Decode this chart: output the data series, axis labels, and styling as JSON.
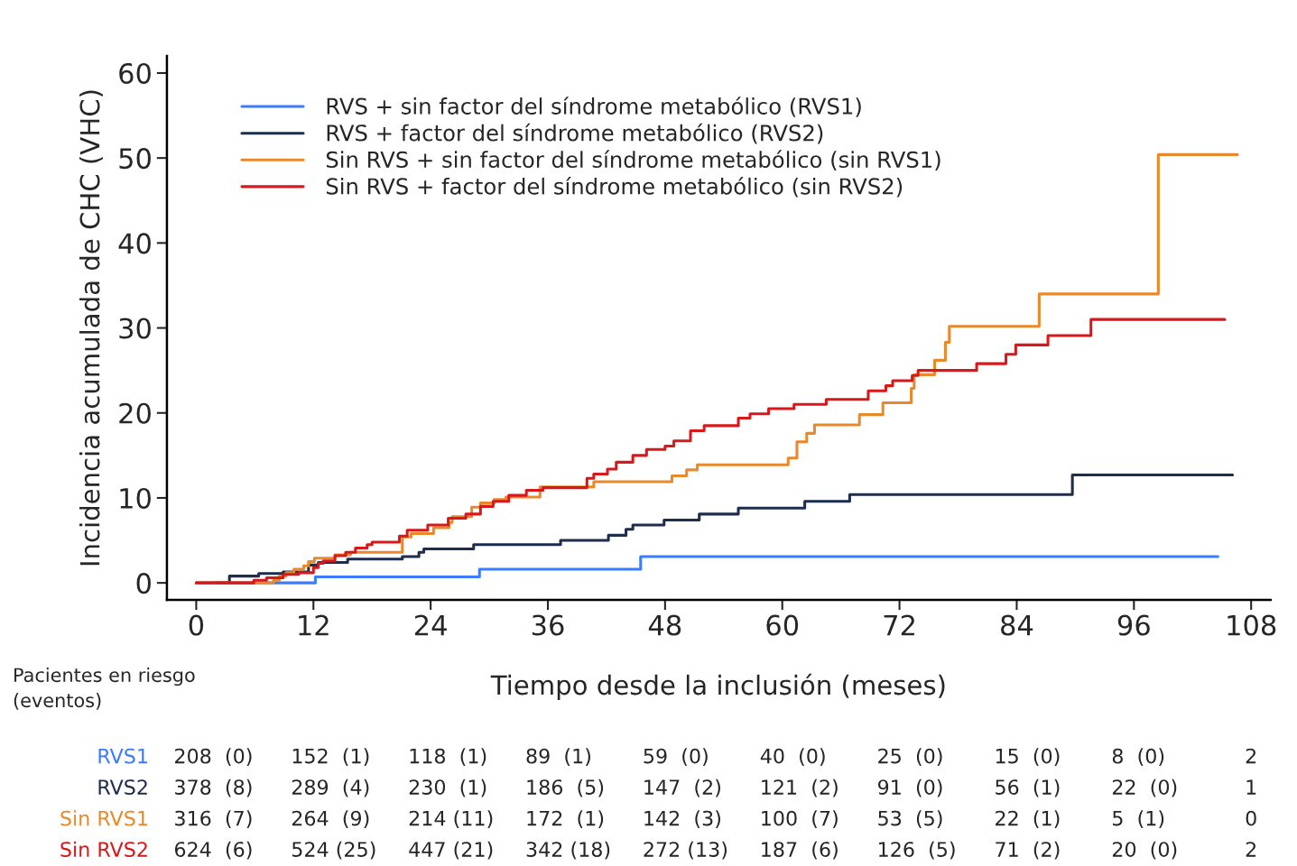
{
  "chart_data": {
    "type": "step",
    "xlabel": "Tiempo desde la inclusión (meses)",
    "ylabel": "Incidencia acumulada de CHC (VHC)",
    "xlim": [
      -3,
      110
    ],
    "xticks": [
      0,
      12,
      24,
      36,
      48,
      60,
      72,
      84,
      96,
      108
    ],
    "ylim": [
      -2,
      62
    ],
    "yticks": [
      0,
      10,
      20,
      30,
      40,
      50,
      60
    ],
    "grid": false,
    "legend": "top left",
    "series": [
      {
        "name": "RVS + sin factor del síndrome metabólico (RVS1)",
        "color": "#3a7bff",
        "x": [
          0,
          12.2,
          29,
          45.5,
          104.6
        ],
        "values": [
          0,
          0.7,
          1.6,
          3.1,
          3.1
        ]
      },
      {
        "name": "RVS + factor del síndrome metabólico (RVS2)",
        "color": "#1f2d4d",
        "x": [
          2,
          3.4,
          6.4,
          8.9,
          11.5,
          12.5,
          15.5,
          21.1,
          22.8,
          23.3,
          28.4,
          37.3,
          42.2,
          44,
          44.7,
          47.9,
          51.5,
          55.5,
          62.3,
          66.9,
          89.7,
          106.1
        ],
        "values": [
          0,
          0.8,
          1.1,
          1.3,
          2.1,
          2.4,
          2.8,
          3.1,
          3.6,
          4.0,
          4.5,
          5.0,
          5.6,
          6.3,
          6.8,
          7.4,
          8.1,
          8.8,
          9.6,
          10.4,
          12.7,
          12.7
        ]
      },
      {
        "name": "Sin RVS + sin factor del síndrome metabólico (sin RVS1)",
        "color": "#e88a2c",
        "x": [
          0,
          7.9,
          8.5,
          9.2,
          10,
          11,
          11.5,
          12.1,
          14.2,
          15.8,
          21.1,
          22,
          24.3,
          25.9,
          26.2,
          28.2,
          29.1,
          30.5,
          31.7,
          35.2,
          40.7,
          48.7,
          50.2,
          51.3,
          60.6,
          61.5,
          62.5,
          63.3,
          67.9,
          70.3,
          73.2,
          73.5,
          75.6,
          76.7,
          77.1,
          86.3,
          98.5,
          106.6
        ],
        "values": [
          0,
          0.3,
          0.8,
          1.2,
          1.6,
          2.0,
          2.5,
          2.9,
          3.3,
          3.6,
          5.4,
          5.8,
          6.5,
          7.1,
          7.8,
          8.9,
          9.4,
          9.8,
          10.1,
          11.3,
          11.9,
          12.6,
          13.3,
          13.9,
          14.7,
          16.6,
          17.6,
          18.6,
          19.8,
          21.2,
          22.9,
          24.5,
          26.2,
          28.3,
          30.2,
          34.0,
          50.4,
          50.4
        ]
      },
      {
        "name": "Sin RVS + factor del síndrome metabólico (sin RVS2)",
        "color": "#d7191c",
        "x": [
          0,
          5.9,
          7.2,
          8.9,
          10.5,
          12,
          12.5,
          13,
          14.2,
          15.3,
          16.3,
          17.5,
          18,
          20.8,
          21.6,
          23.7,
          25.8,
          27.6,
          29.1,
          30.4,
          32,
          33.8,
          35.5,
          40,
          40.7,
          42.1,
          43,
          44.7,
          46.1,
          48,
          48.9,
          50.6,
          52,
          55.5,
          56.7,
          58.6,
          61.2,
          64.5,
          68.8,
          70.6,
          71.3,
          73.3,
          73.9,
          79.9,
          82.9,
          83.9,
          87.2,
          91.6,
          105.3
        ],
        "values": [
          0,
          0.3,
          0.6,
          1.0,
          1.2,
          1.8,
          2.3,
          2.6,
          3.2,
          3.6,
          4.1,
          4.5,
          4.8,
          5.5,
          6.2,
          6.8,
          7.6,
          8.1,
          9.0,
          9.6,
          10.3,
          10.9,
          11.2,
          12.3,
          12.8,
          13.4,
          14.2,
          15.0,
          15.7,
          16.1,
          16.7,
          17.9,
          18.5,
          19.4,
          19.9,
          20.5,
          21.0,
          21.6,
          22.6,
          23.2,
          23.8,
          24.4,
          25.0,
          25.8,
          26.9,
          28.0,
          29.1,
          31.0,
          31.0
        ]
      }
    ],
    "annotations": [
      "Pacientes en riesgo\n(eventos)",
      "RVS1",
      "208  (0)",
      "152  (1)",
      "118  (1)",
      "89  (1)",
      "59  (0)",
      "40  (0)",
      "25  (0)",
      "15  (0)",
      "8  (0)",
      "2",
      "RVS2",
      "378  (8)",
      "289  (4)",
      "230  (1)",
      "186  (5)",
      "147  (2)",
      "121  (2)",
      "91  (0)",
      "56  (1)",
      "22  (0)",
      "1",
      "Sin RVS1",
      "316  (7)",
      "264  (9)",
      "214 (11)",
      "172  (1)",
      "142  (3)",
      "100  (7)",
      "53  (5)",
      "22  (1)",
      "5  (1)",
      "0",
      "Sin RVS2",
      "624  (6)",
      "524 (25)",
      "447 (21)",
      "342 (18)",
      "272 (13)",
      "187  (6)",
      "126  (5)",
      "71  (2)",
      "20  (0)",
      "2"
    ]
  }
}
